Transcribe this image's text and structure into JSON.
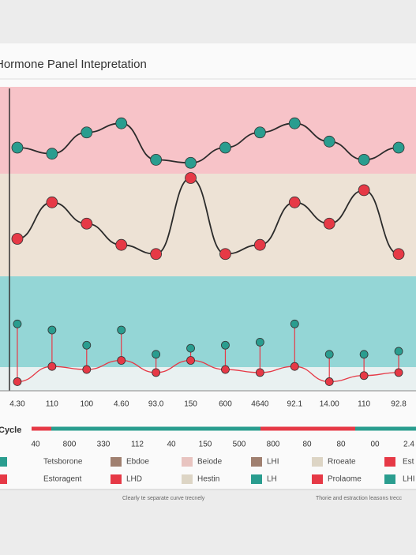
{
  "chart_data": {
    "type": "line",
    "title": "Hormone Panel Intepretation",
    "categories": [
      "4.30",
      "110",
      "100",
      "4.60",
      "93.0",
      "150",
      "600",
      "4640",
      "92.1",
      "14.00",
      "110",
      "92.8"
    ],
    "ylim": [
      0,
      100
    ],
    "bands": [
      "#f7c3c8",
      "#ede2d5",
      "#94d6d6",
      "#e9f1f1"
    ],
    "series": [
      {
        "color": "#2b2b2b",
        "marker_color": "#2a9d8f",
        "values": [
          80,
          78,
          85,
          88,
          76,
          75,
          80,
          85,
          88,
          82,
          76,
          80
        ]
      },
      {
        "color": "#2b2b2b",
        "marker_color": "#e63946",
        "values": [
          50,
          62,
          55,
          48,
          45,
          70,
          45,
          48,
          62,
          55,
          66,
          45
        ]
      },
      {
        "color": "#e63946",
        "marker_color": "#e63946",
        "values": [
          3,
          8,
          7,
          10,
          6,
          10,
          7,
          6,
          8,
          3,
          5,
          6
        ]
      },
      {
        "color": "#e63946",
        "marker_color": "#2a9d8f",
        "values": [
          22,
          20,
          15,
          20,
          12,
          14,
          15,
          16,
          22,
          12,
          12,
          13
        ]
      }
    ],
    "cycle_label": "Cycle",
    "cycle_ticks": [
      "40",
      "800",
      "330",
      "112",
      "40",
      "150",
      "500",
      "800",
      "80",
      "80",
      "00",
      "2.4"
    ],
    "legend": [
      {
        "label": "Tetsborone",
        "color": "#2a9d8f"
      },
      {
        "label": "Ebdoe",
        "color": "#a08070"
      },
      {
        "label": "Beiode",
        "color": "#e8c4c0"
      },
      {
        "label": "LHI",
        "color": "#a08070"
      },
      {
        "label": "Rroeate",
        "color": "#ddd5c5"
      },
      {
        "label": "Est",
        "color": "#e63946"
      },
      {
        "label": "Estoragent",
        "color": "#e63946"
      },
      {
        "label": "LHD",
        "color": "#e63946"
      },
      {
        "label": "Hestin",
        "color": "#ddd5c5"
      },
      {
        "label": "LH",
        "color": "#2a9d8f"
      },
      {
        "label": "Prolaome",
        "color": "#e63946"
      },
      {
        "label": "LHI",
        "color": "#2a9d8f"
      }
    ],
    "notes": [
      "Clearly te separate curve trecnely",
      "Thorie and estraction leasons trecc"
    ]
  }
}
